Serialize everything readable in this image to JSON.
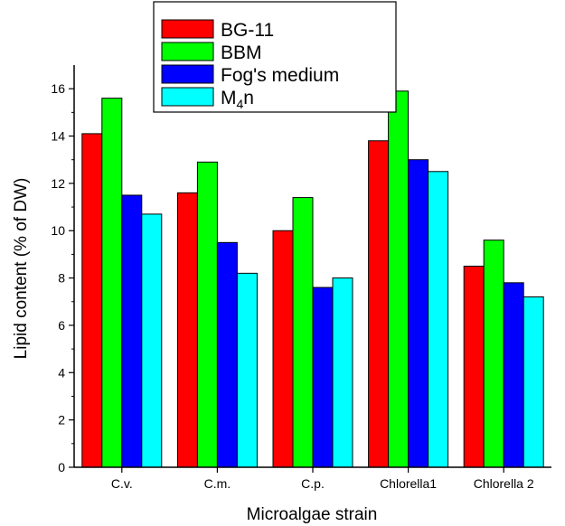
{
  "chart_data": {
    "type": "bar",
    "title": "",
    "xlabel": "Microalgae strain",
    "ylabel": "Lipid content (% of DW)",
    "ylim": [
      0,
      17
    ],
    "yticks": [
      0,
      2,
      4,
      6,
      8,
      10,
      12,
      14,
      16
    ],
    "grid": false,
    "legend_position": "top-center",
    "categories": [
      "C.v.",
      "C.m.",
      "C.p.",
      "Chlorella1",
      "Chlorella 2"
    ],
    "series": [
      {
        "name": "BG-11",
        "color": "#ff0000",
        "values": [
          14.1,
          11.6,
          10.0,
          13.8,
          8.5
        ]
      },
      {
        "name": "BBM",
        "color": "#00ff00",
        "values": [
          15.6,
          12.9,
          11.4,
          15.9,
          9.6
        ]
      },
      {
        "name": "Fog's medium",
        "color": "#0000ff",
        "values": [
          11.5,
          9.5,
          7.6,
          13.0,
          7.8
        ]
      },
      {
        "name": "M4n",
        "name_main": "M",
        "name_sub": "4",
        "name_tail": "n",
        "color": "#00ffff",
        "values": [
          10.7,
          8.2,
          8.0,
          12.5,
          7.2
        ]
      }
    ]
  }
}
